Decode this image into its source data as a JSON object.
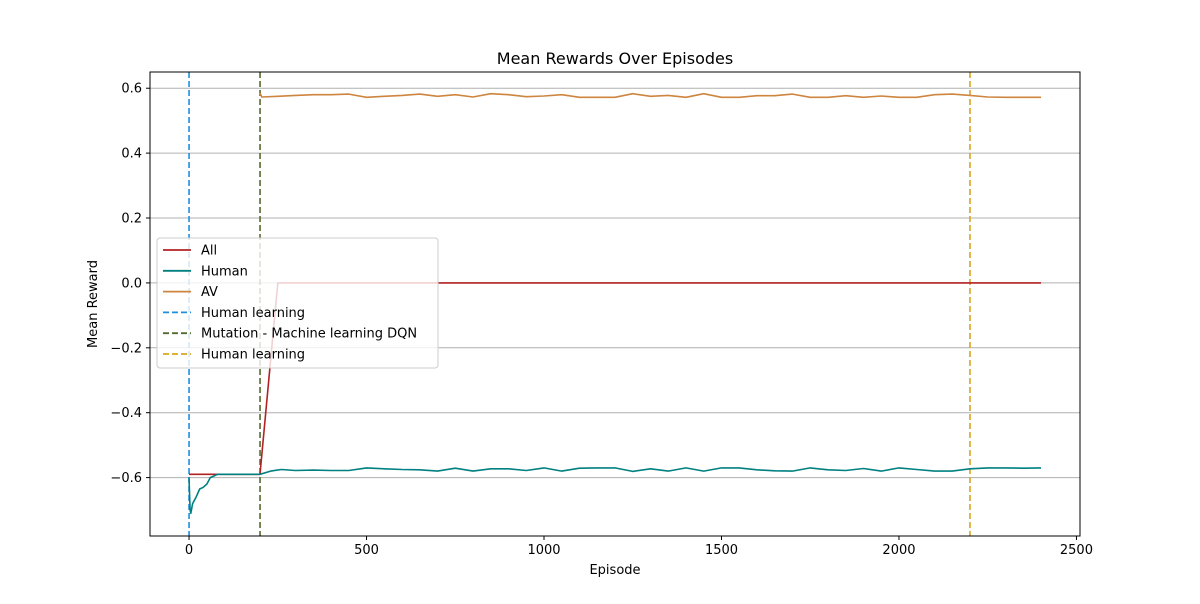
{
  "chart_data": {
    "type": "line",
    "title": "Mean Rewards Over Episodes",
    "xlabel": "Episode",
    "ylabel": "Mean Reward",
    "xlim": [
      -110,
      2510
    ],
    "ylim": [
      -0.78,
      0.65
    ],
    "xticks": [
      0,
      500,
      1000,
      1500,
      2000,
      2500
    ],
    "xtick_labels": [
      "0",
      "500",
      "1000",
      "1500",
      "2000",
      "2500"
    ],
    "yticks": [
      -0.6,
      -0.4,
      -0.2,
      0.0,
      0.2,
      0.4,
      0.6
    ],
    "ytick_labels": [
      "−0.6",
      "−0.4",
      "−0.2",
      "0.0",
      "0.2",
      "0.4",
      "0.6"
    ],
    "grid": "horizontal",
    "legend_position": "center-left",
    "series": [
      {
        "name": "All",
        "color": "#b22222",
        "x": [
          0,
          200,
          250,
          2400
        ],
        "y": [
          -0.59,
          -0.59,
          0.0,
          0.0
        ]
      },
      {
        "name": "Human",
        "color": "#008080",
        "x": [
          0,
          3,
          5,
          10,
          20,
          30,
          40,
          50,
          60,
          70,
          80,
          100,
          150,
          200,
          230,
          260,
          300,
          350,
          400,
          450,
          500,
          550,
          600,
          650,
          700,
          750,
          800,
          850,
          900,
          950,
          1000,
          1050,
          1100,
          1150,
          1200,
          1250,
          1300,
          1350,
          1400,
          1450,
          1500,
          1550,
          1600,
          1650,
          1700,
          1750,
          1800,
          1850,
          1900,
          1950,
          2000,
          2050,
          2100,
          2150,
          2200,
          2250,
          2300,
          2350,
          2400
        ],
        "y": [
          -0.6,
          -0.7,
          -0.71,
          -0.68,
          -0.66,
          -0.635,
          -0.63,
          -0.62,
          -0.6,
          -0.595,
          -0.59,
          -0.59,
          -0.59,
          -0.59,
          -0.58,
          -0.575,
          -0.578,
          -0.577,
          -0.578,
          -0.578,
          -0.57,
          -0.573,
          -0.575,
          -0.576,
          -0.58,
          -0.571,
          -0.58,
          -0.573,
          -0.573,
          -0.578,
          -0.57,
          -0.58,
          -0.571,
          -0.57,
          -0.57,
          -0.581,
          -0.573,
          -0.58,
          -0.57,
          -0.58,
          -0.57,
          -0.57,
          -0.576,
          -0.579,
          -0.58,
          -0.57,
          -0.576,
          -0.578,
          -0.572,
          -0.58,
          -0.57,
          -0.575,
          -0.58,
          -0.58,
          -0.573,
          -0.57,
          -0.57,
          -0.571,
          -0.57
        ]
      },
      {
        "name": "AV",
        "color": "#cd853f",
        "x": [
          200,
          205,
          250,
          300,
          350,
          400,
          450,
          500,
          550,
          600,
          650,
          700,
          750,
          800,
          850,
          900,
          950,
          1000,
          1050,
          1100,
          1150,
          1200,
          1250,
          1300,
          1350,
          1400,
          1450,
          1500,
          1550,
          1600,
          1650,
          1700,
          1750,
          1800,
          1850,
          1900,
          1950,
          2000,
          2050,
          2100,
          2150,
          2200,
          2250,
          2300,
          2350,
          2400
        ],
        "y": [
          0.585,
          0.573,
          0.575,
          0.578,
          0.58,
          0.58,
          0.582,
          0.572,
          0.575,
          0.578,
          0.582,
          0.575,
          0.58,
          0.573,
          0.583,
          0.58,
          0.574,
          0.576,
          0.58,
          0.572,
          0.572,
          0.572,
          0.583,
          0.575,
          0.578,
          0.572,
          0.583,
          0.572,
          0.572,
          0.577,
          0.577,
          0.582,
          0.572,
          0.572,
          0.577,
          0.572,
          0.576,
          0.572,
          0.572,
          0.58,
          0.582,
          0.578,
          0.573,
          0.572,
          0.572,
          0.572
        ]
      }
    ],
    "vlines": [
      {
        "name": "Human learning",
        "x": 0,
        "color": "#1f8fe0",
        "style": "dashed"
      },
      {
        "name": "Mutation - Machine learning DQN",
        "x": 200,
        "color": "#556b2f",
        "style": "dashed"
      },
      {
        "name": "Human learning",
        "x": 2200,
        "color": "#daa520",
        "style": "dashed"
      }
    ]
  }
}
